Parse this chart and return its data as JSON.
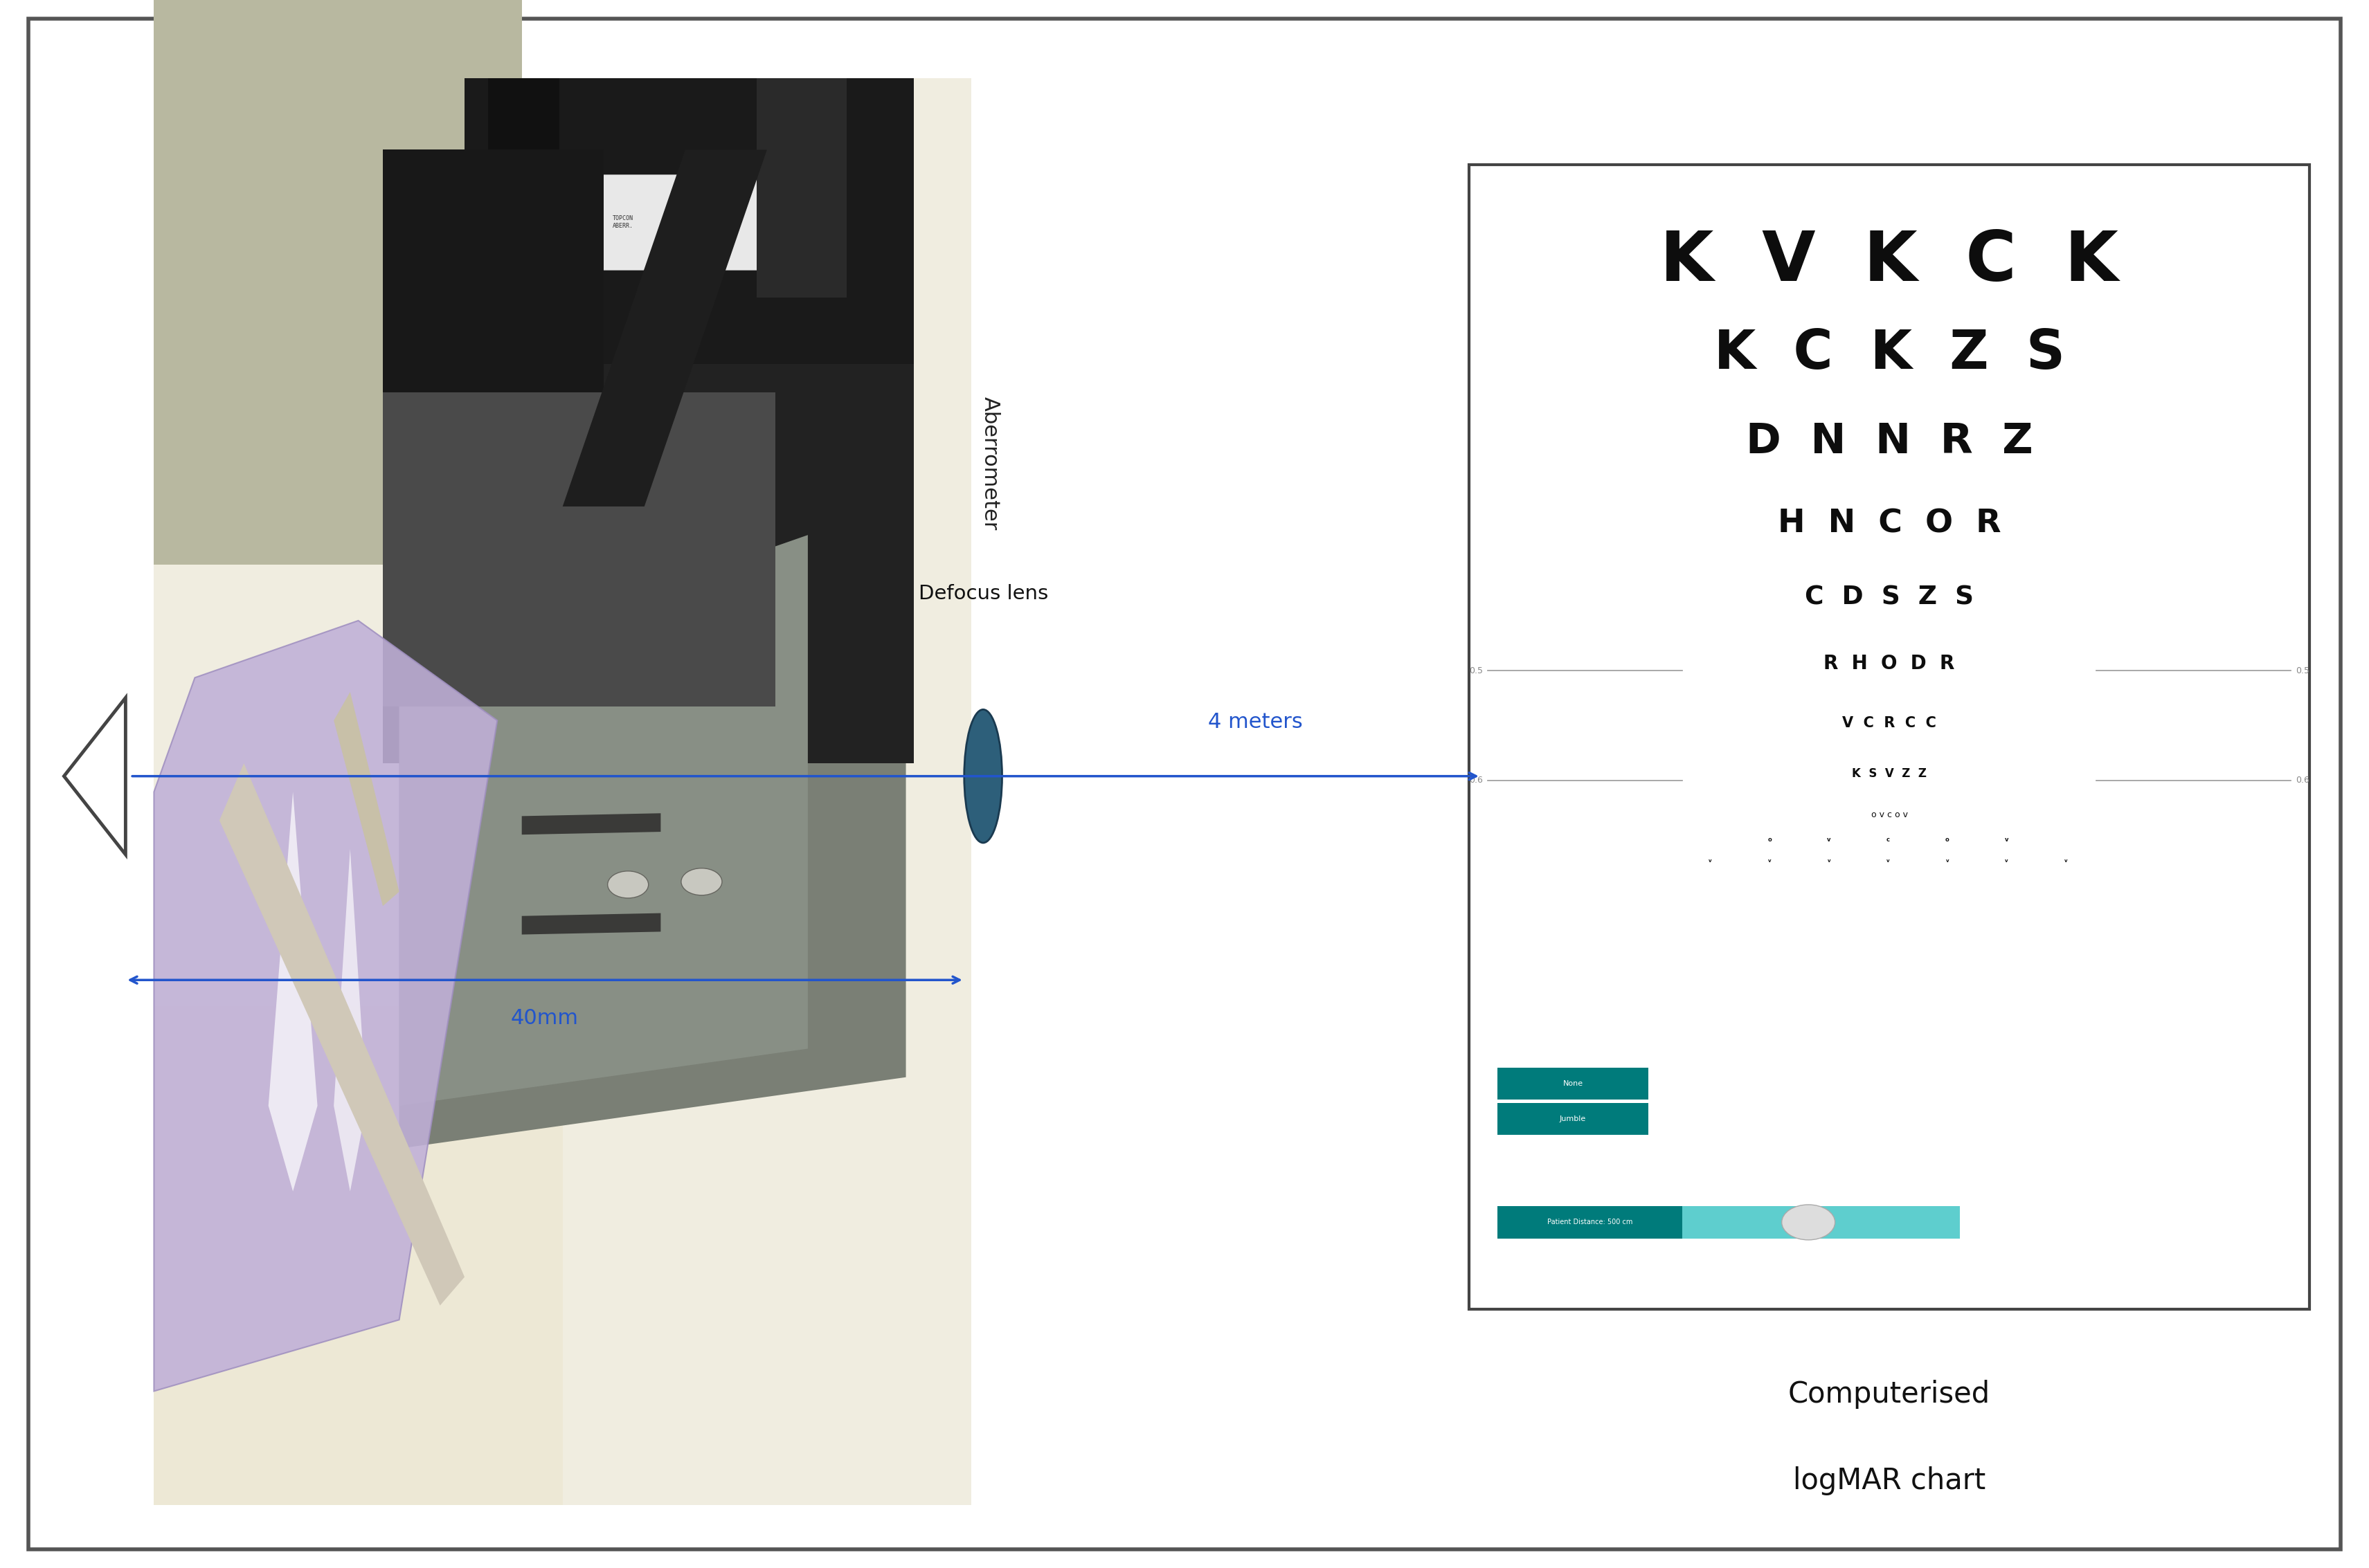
{
  "bg_color": "#ffffff",
  "border_color": "#555555",
  "arrow_color": "#2255cc",
  "aberrometer_label": "Aberrometer",
  "defocus_label": "Defocus lens",
  "distance_label": "4 meters",
  "measurement_label": "40mm",
  "chart_label_line1": "Computerised",
  "chart_label_line2": "logMAR chart",
  "logmar_rows": [
    {
      "text": "K  V  K  C  K",
      "fontsize": 72,
      "bold": true
    },
    {
      "text": "K  C  K  Z  S",
      "fontsize": 56,
      "bold": true
    },
    {
      "text": "D  N  N  R  Z",
      "fontsize": 44,
      "bold": true
    },
    {
      "text": "H  N  C  O  R",
      "fontsize": 34,
      "bold": true
    },
    {
      "text": "C  D  S  Z  S",
      "fontsize": 27,
      "bold": true
    },
    {
      "text": "R  H  O  D  R",
      "fontsize": 20,
      "bold": true
    },
    {
      "text": "V  C  R  C  C",
      "fontsize": 15,
      "bold": true
    },
    {
      "text": "K  S  V  Z  Z",
      "fontsize": 12,
      "bold": true
    },
    {
      "text": "o v c o v",
      "fontsize": 9,
      "bold": false
    }
  ],
  "teal_color": "#007b7b",
  "cyan_color": "#5ecece"
}
